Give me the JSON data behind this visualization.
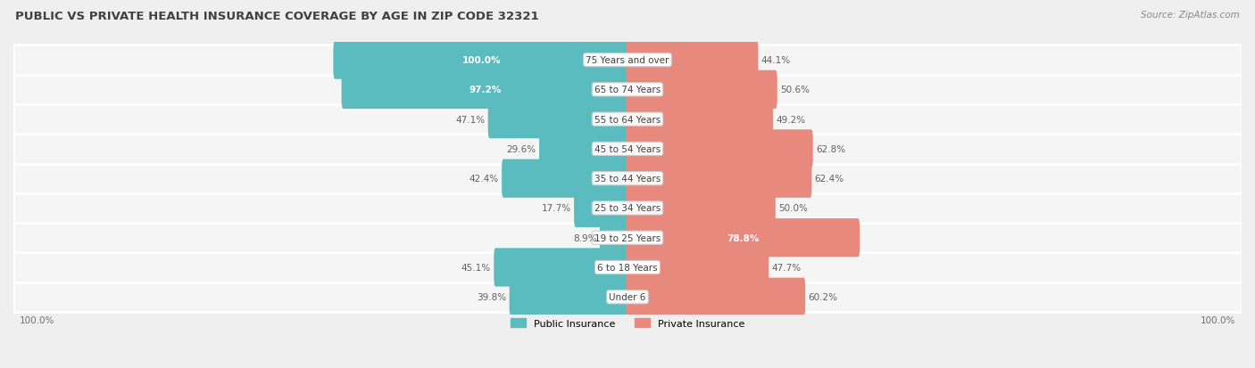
{
  "title": "PUBLIC VS PRIVATE HEALTH INSURANCE COVERAGE BY AGE IN ZIP CODE 32321",
  "source": "Source: ZipAtlas.com",
  "categories": [
    "Under 6",
    "6 to 18 Years",
    "19 to 25 Years",
    "25 to 34 Years",
    "35 to 44 Years",
    "45 to 54 Years",
    "55 to 64 Years",
    "65 to 74 Years",
    "75 Years and over"
  ],
  "public_values": [
    39.8,
    45.1,
    8.9,
    17.7,
    42.4,
    29.6,
    47.1,
    97.2,
    100.0
  ],
  "private_values": [
    60.2,
    47.7,
    78.8,
    50.0,
    62.4,
    62.8,
    49.2,
    50.6,
    44.1
  ],
  "public_color": "#5bbcbf",
  "private_color": "#e8897e",
  "bg_color": "#efefef",
  "bar_bg_color": "#f5f5f5",
  "title_color": "#404040",
  "dark_label_color": "#606060",
  "max_value": 100.0,
  "legend_public": "Public Insurance",
  "legend_private": "Private Insurance",
  "scale": 0.5,
  "bar_height": 0.7,
  "xlim": [
    -105,
    105
  ]
}
